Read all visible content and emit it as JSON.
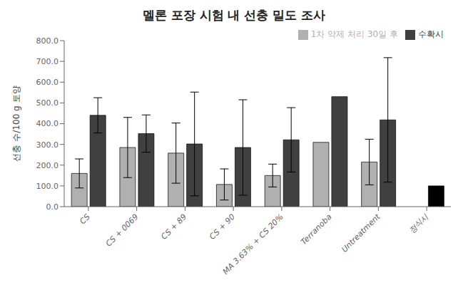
{
  "chart_data": {
    "type": "bar",
    "title": "멜론 포장 시험 내 선충 밀도 조사",
    "ylabel": "선충 수/100 g 토양",
    "categories": [
      "CS",
      "CS + 0069",
      "CS + 89",
      "CS + 90",
      "MA 3.63% + CS 20%",
      "Terranoba",
      "Untreatment",
      "정식시"
    ],
    "series": [
      {
        "name": "1차 약제 처리 30일 후",
        "color": "#b0b0b0",
        "values": [
          160,
          285,
          258,
          107,
          150,
          310,
          215,
          null
        ],
        "errors": [
          70,
          145,
          145,
          75,
          55,
          null,
          110,
          null
        ]
      },
      {
        "name": "수확시",
        "color": "#404040",
        "colors": [
          "#404040",
          "#404040",
          "#404040",
          "#404040",
          "#404040",
          "#404040",
          "#404040",
          "#000000"
        ],
        "values": [
          440,
          352,
          302,
          285,
          322,
          530,
          418,
          100
        ],
        "errors": [
          85,
          90,
          250,
          230,
          155,
          null,
          300,
          null
        ]
      }
    ],
    "ylim": [
      0,
      800
    ],
    "yticks": [
      {
        "value": 0,
        "label": "0.0"
      },
      {
        "value": 100,
        "label": "100.0"
      },
      {
        "value": 200,
        "label": "200.0"
      },
      {
        "value": 300,
        "label": "300.0"
      },
      {
        "value": 400,
        "label": "400.0"
      },
      {
        "value": 500,
        "label": "500.0"
      },
      {
        "value": 600,
        "label": "600.0"
      },
      {
        "value": 700,
        "label": "700.0"
      },
      {
        "value": 800,
        "label": "800.0"
      }
    ],
    "legend": "upper right",
    "grid": false
  }
}
